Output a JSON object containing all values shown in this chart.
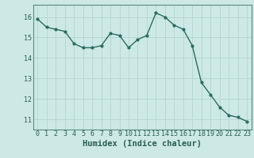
{
  "x": [
    0,
    1,
    2,
    3,
    4,
    5,
    6,
    7,
    8,
    9,
    10,
    11,
    12,
    13,
    14,
    15,
    16,
    17,
    18,
    19,
    20,
    21,
    22,
    23
  ],
  "y": [
    15.9,
    15.5,
    15.4,
    15.3,
    14.7,
    14.5,
    14.5,
    14.6,
    15.2,
    15.1,
    14.5,
    14.9,
    15.1,
    16.2,
    16.0,
    15.6,
    15.4,
    14.6,
    12.8,
    12.2,
    11.6,
    11.2,
    11.1,
    10.9
  ],
  "bg_color": "#cce9e5",
  "line_color": "#2d6b5e",
  "marker_color": "#2d6b5e",
  "grid_color": "#b8d8d4",
  "axis_label_color": "#2d5e50",
  "tick_color": "#2d5e50",
  "spine_color": "#5a8a80",
  "xlabel": "Humidex (Indice chaleur)",
  "ylim": [
    10.5,
    16.6
  ],
  "xlim": [
    -0.5,
    23.5
  ],
  "yticks": [
    11,
    12,
    13,
    14,
    15,
    16
  ],
  "xticks": [
    0,
    1,
    2,
    3,
    4,
    5,
    6,
    7,
    8,
    9,
    10,
    11,
    12,
    13,
    14,
    15,
    16,
    17,
    18,
    19,
    20,
    21,
    22,
    23
  ],
  "tick_font_size": 6,
  "xlabel_font_size": 7.5
}
